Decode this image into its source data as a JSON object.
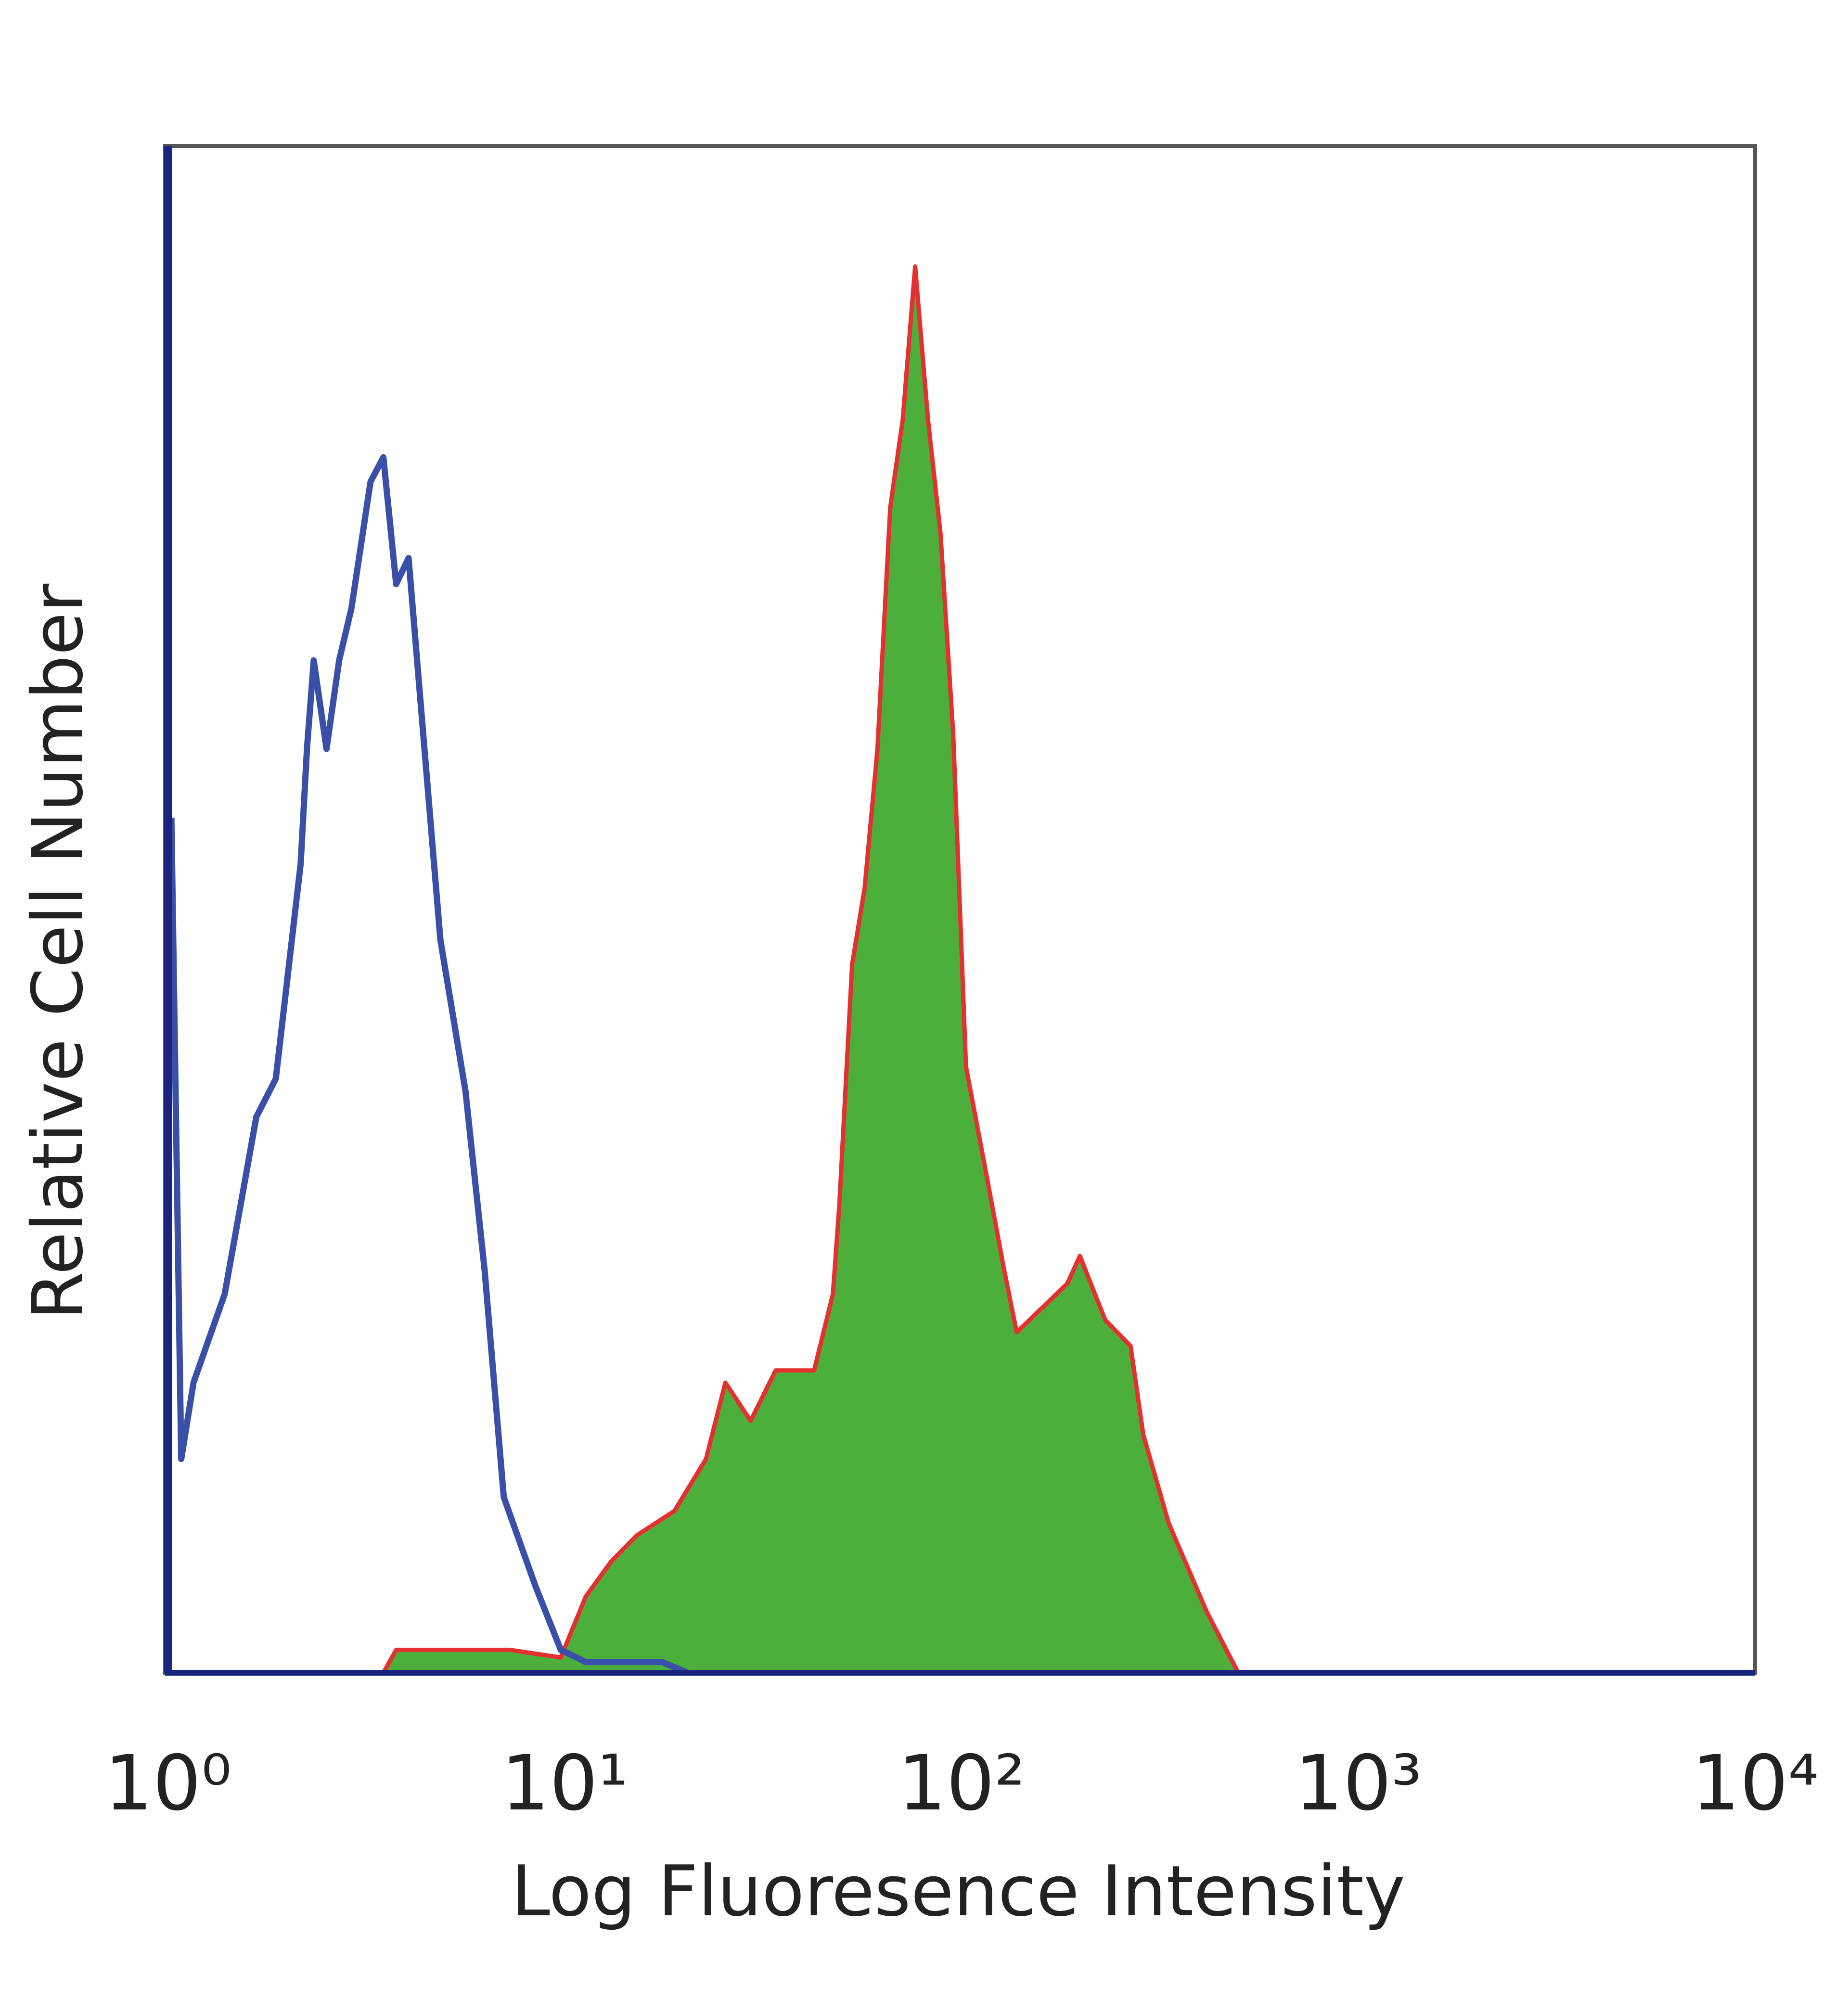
{
  "chart_data": {
    "type": "histogram-overlay",
    "x_label": "Log Fluoresence Intensity",
    "y_label": "Relative Cell Number",
    "x_scale": "log",
    "xlim": [
      1,
      10000
    ],
    "ylim": [
      0,
      100
    ],
    "xticks": [
      {
        "value": 1,
        "label": "10⁰"
      },
      {
        "value": 10,
        "label": "10¹"
      },
      {
        "value": 100,
        "label": "10²"
      },
      {
        "value": 1000,
        "label": "10³"
      },
      {
        "value": 10000,
        "label": "10⁴"
      }
    ],
    "series": [
      {
        "color": "#3a4fa8",
        "filled": false,
        "x": [
          1.02,
          1.08,
          1.16,
          1.39,
          1.67,
          1.87,
          2.16,
          2.24,
          2.33,
          2.51,
          2.7,
          2.9,
          3.24,
          3.49,
          3.76,
          4.04,
          4.35,
          4.86,
          5.62,
          6.28,
          7.02,
          8.43,
          9.77,
          11.3,
          17.6,
          20.4
        ],
        "values": [
          56,
          14,
          19,
          24.8,
          36.4,
          38.9,
          53,
          60.5,
          66.3,
          60.5,
          66.3,
          69.7,
          78,
          79.6,
          71.3,
          73,
          63,
          48,
          38.1,
          26.4,
          11.5,
          5.7,
          1.5,
          0.7,
          0.7,
          0
        ]
      },
      {
        "color": "#e53030",
        "fill": "#4caf3c",
        "filled": true,
        "x": [
          1,
          3.49,
          3.76,
          7.28,
          9.77,
          11.3,
          13.1,
          15.2,
          18.9,
          22.7,
          25.4,
          29.4,
          34.0,
          42.5,
          47.4,
          49.2,
          53.0,
          57.0,
          61.4,
          66.1,
          71.1,
          76.4,
          82.3,
          88.5,
          95.3,
          102.6,
          114.6,
          128.0,
          137.7,
          159.6,
          184.9,
          198.7,
          230.2,
          266.7,
          287.1,
          332.7,
          414.8,
          498.1
        ],
        "values": [
          0,
          0,
          1.5,
          1.5,
          1.0,
          5.0,
          7.3,
          9.0,
          10.6,
          14.0,
          19.0,
          16.5,
          19.8,
          19.8,
          24.8,
          30.6,
          46.4,
          51.4,
          60.5,
          76.3,
          82.1,
          92.1,
          82.1,
          74.6,
          61.4,
          39.7,
          33.1,
          26.4,
          22.3,
          23.9,
          25.5,
          27.3,
          23.1,
          21.4,
          15.6,
          9.8,
          4.0,
          0
        ]
      }
    ]
  }
}
